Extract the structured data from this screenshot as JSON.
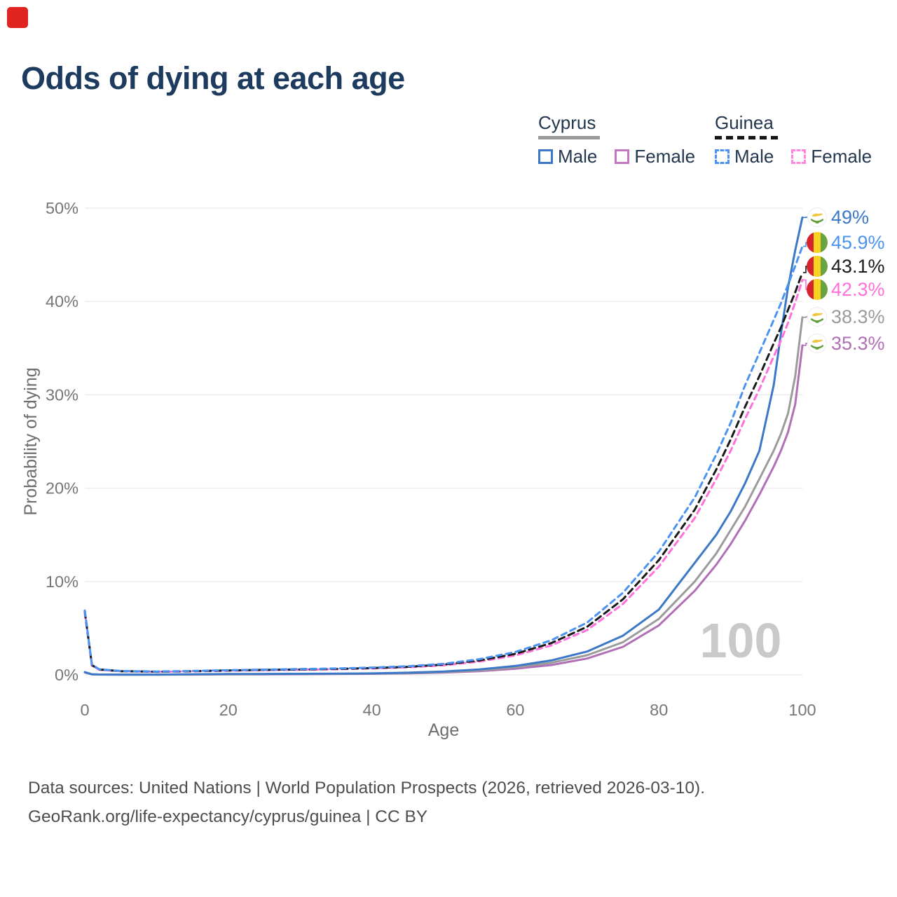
{
  "title": "Odds of dying at each age",
  "watermark": "100",
  "footer": {
    "line1": "Data sources: United Nations | World Population Prospects (2026, retrieved 2026-03-10).",
    "line2": "GeoRank.org/life-expectancy/cyprus/guinea | CC BY"
  },
  "colors": {
    "title": "#1d3a5f",
    "axis_text": "#767676",
    "grid": "#ececec",
    "watermark": "#c9c9c9",
    "footer_text": "#4d4d4d",
    "recording_indicator": "#e02421",
    "legend_text": "#24374e"
  },
  "legend": {
    "groups": [
      {
        "name": "Cyprus",
        "underline": "solid",
        "items": [
          {
            "label": "Male",
            "style": "solid",
            "color": "#3c78c8"
          },
          {
            "label": "Female",
            "style": "solid",
            "color": "#c178c0"
          }
        ]
      },
      {
        "name": "Guinea",
        "underline": "dashed",
        "items": [
          {
            "label": "Male",
            "style": "dashed",
            "color": "#4b93f1"
          },
          {
            "label": "Female",
            "style": "dashed",
            "color": "#ff85de"
          }
        ]
      }
    ]
  },
  "chart_data": {
    "type": "line",
    "title": "Odds of dying at each age",
    "xlabel": "Age",
    "ylabel": "Probability of dying",
    "xlim": [
      0,
      100
    ],
    "ylim": [
      0,
      50
    ],
    "x_ticks": [
      0,
      20,
      40,
      60,
      80,
      100
    ],
    "y_ticks": [
      {
        "value": 0,
        "label": "0%"
      },
      {
        "value": 10,
        "label": "10%"
      },
      {
        "value": 20,
        "label": "20%"
      },
      {
        "value": 30,
        "label": "30%"
      },
      {
        "value": 40,
        "label": "40%"
      },
      {
        "value": 50,
        "label": "50%"
      }
    ],
    "grid": "horizontal",
    "legend_position": "top-right",
    "ages": [
      0,
      1,
      2,
      5,
      10,
      15,
      20,
      25,
      30,
      35,
      40,
      45,
      50,
      55,
      60,
      65,
      70,
      75,
      80,
      85,
      88,
      90,
      92,
      94,
      96,
      97,
      98,
      99,
      100
    ],
    "series": [
      {
        "id": "cyprus_female",
        "name": "Cyprus Female",
        "country": "Cyprus",
        "sex": "Female",
        "style": "solid",
        "color": "#b170b6",
        "flag": "cyprus",
        "end_label": "35.3%",
        "values": [
          0.25,
          0.05,
          0.03,
          0.02,
          0.02,
          0.03,
          0.05,
          0.06,
          0.07,
          0.09,
          0.11,
          0.16,
          0.25,
          0.4,
          0.66,
          1.05,
          1.75,
          3.0,
          5.3,
          9.0,
          11.8,
          14.0,
          16.5,
          19.3,
          22.3,
          24.0,
          26.0,
          29.0,
          35.3
        ]
      },
      {
        "id": "cyprus_total",
        "name": "Cyprus (both sexes)",
        "country": "Cyprus",
        "sex": "Both",
        "style": "solid",
        "color": "#9b9b9b",
        "flag": "cyprus",
        "end_label": "38.3%",
        "values": [
          0.28,
          0.05,
          0.04,
          0.03,
          0.03,
          0.05,
          0.07,
          0.08,
          0.09,
          0.11,
          0.14,
          0.19,
          0.3,
          0.48,
          0.8,
          1.3,
          2.1,
          3.5,
          6.0,
          10.0,
          13.0,
          15.5,
          18.0,
          21.0,
          24.0,
          25.8,
          28.0,
          32.0,
          38.3
        ]
      },
      {
        "id": "cyprus_male",
        "name": "Cyprus Male",
        "country": "Cyprus",
        "sex": "Male",
        "style": "solid",
        "color": "#3c78c8",
        "flag": "cyprus",
        "end_label": "49%",
        "values": [
          0.3,
          0.06,
          0.04,
          0.03,
          0.03,
          0.06,
          0.09,
          0.1,
          0.11,
          0.13,
          0.16,
          0.23,
          0.36,
          0.58,
          0.95,
          1.55,
          2.5,
          4.2,
          7.0,
          12.0,
          15.0,
          17.5,
          20.5,
          24.0,
          31.0,
          36.5,
          41.5,
          45.5,
          49.0
        ]
      },
      {
        "id": "guinea_female",
        "name": "Guinea Female",
        "country": "Guinea",
        "sex": "Female",
        "style": "dashed",
        "color": "#ff70dc",
        "flag": "guinea",
        "end_label": "42.3%",
        "values": [
          6.6,
          1.0,
          0.55,
          0.38,
          0.32,
          0.37,
          0.44,
          0.5,
          0.55,
          0.6,
          0.68,
          0.8,
          1.02,
          1.43,
          2.08,
          3.15,
          4.8,
          7.6,
          11.6,
          16.8,
          21.0,
          24.0,
          27.4,
          30.6,
          34.1,
          35.8,
          37.7,
          39.9,
          42.3
        ]
      },
      {
        "id": "guinea_total",
        "name": "Guinea (both sexes)",
        "country": "Guinea",
        "sex": "Both",
        "style": "dashed",
        "color": "#1a1a1a",
        "flag": "guinea",
        "end_label": "43.1%",
        "values": [
          6.8,
          1.05,
          0.58,
          0.4,
          0.34,
          0.4,
          0.47,
          0.53,
          0.58,
          0.64,
          0.73,
          0.86,
          1.1,
          1.55,
          2.25,
          3.4,
          5.15,
          8.1,
          12.3,
          17.7,
          22.0,
          25.2,
          28.7,
          32.0,
          35.5,
          37.2,
          39.1,
          41.0,
          43.1
        ]
      },
      {
        "id": "guinea_male",
        "name": "Guinea Male",
        "country": "Guinea",
        "sex": "Male",
        "style": "dashed",
        "color": "#4b93f1",
        "flag": "guinea",
        "end_label": "45.9%",
        "values": [
          6.9,
          1.1,
          0.6,
          0.42,
          0.36,
          0.42,
          0.5,
          0.56,
          0.62,
          0.68,
          0.78,
          0.92,
          1.18,
          1.68,
          2.45,
          3.7,
          5.6,
          8.8,
          13.2,
          19.0,
          23.6,
          27.0,
          31.0,
          34.5,
          38.0,
          39.8,
          41.8,
          43.8,
          45.9
        ]
      }
    ]
  }
}
